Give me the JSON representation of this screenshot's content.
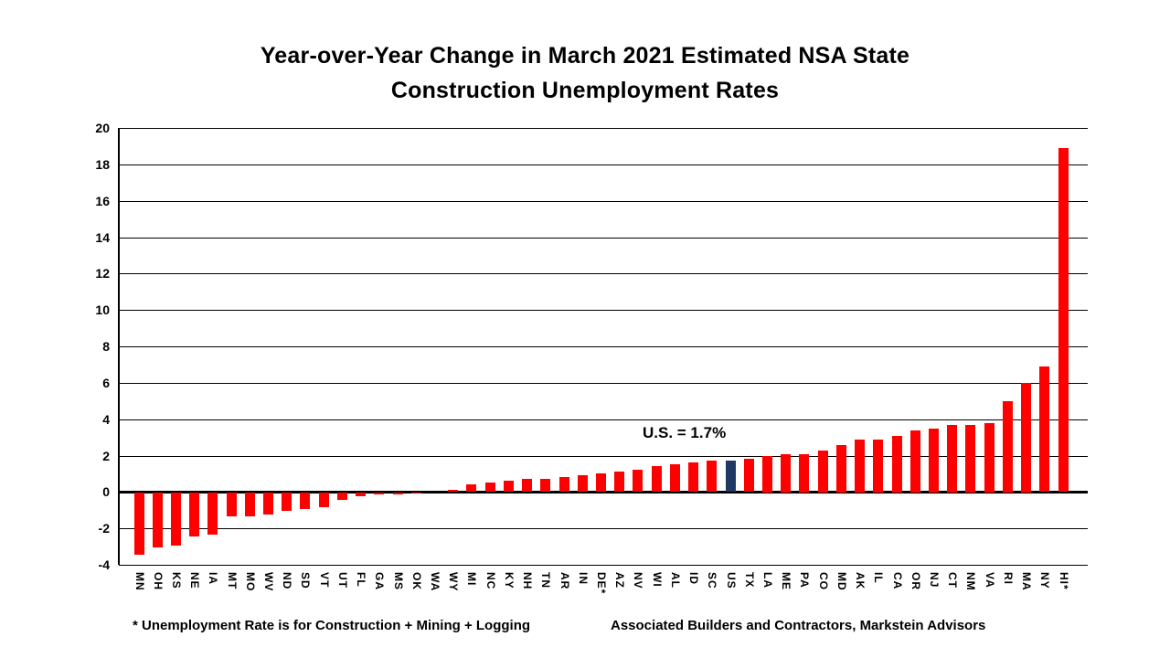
{
  "title": {
    "line1": "Year-over-Year Change in March 2021 Estimated NSA State",
    "line2": "Construction Unemployment Rates"
  },
  "footnotes": {
    "left": "* Unemployment Rate is for Construction + Mining + Logging",
    "right": "Associated Builders and Contractors, Markstein Advisors"
  },
  "chart_data": {
    "type": "bar",
    "title": "Year-over-Year Change in March 2021 Estimated NSA State Construction Unemployment Rates",
    "categories": [
      "MN",
      "OH",
      "KS",
      "NE",
      "IA",
      "MT",
      "MO",
      "WV",
      "ND",
      "SD",
      "VT",
      "UT",
      "FL",
      "GA",
      "MS",
      "OK",
      "WA",
      "WY",
      "MI",
      "NC",
      "KY",
      "NH",
      "TN",
      "AR",
      "IN",
      "DE*",
      "AZ",
      "NV",
      "WI",
      "AL",
      "ID",
      "SC",
      "US",
      "TX",
      "LA",
      "ME",
      "PA",
      "CO",
      "MD",
      "AK",
      "IL",
      "CA",
      "OR",
      "NJ",
      "CT",
      "NM",
      "VA",
      "RI",
      "MA",
      "NY",
      "HI*"
    ],
    "values": [
      -3.4,
      -3.0,
      -2.9,
      -2.4,
      -2.3,
      -1.3,
      -1.3,
      -1.2,
      -1.0,
      -0.9,
      -0.8,
      -0.4,
      -0.2,
      -0.1,
      -0.1,
      -0.05,
      0.0,
      0.1,
      0.4,
      0.5,
      0.6,
      0.7,
      0.7,
      0.8,
      0.9,
      1.0,
      1.1,
      1.2,
      1.4,
      1.5,
      1.6,
      1.7,
      1.7,
      1.8,
      2.0,
      2.1,
      2.1,
      2.3,
      2.6,
      2.9,
      2.9,
      3.1,
      3.4,
      3.5,
      3.7,
      3.7,
      3.8,
      5.0,
      6.0,
      6.9,
      18.9
    ],
    "xlabel": "",
    "ylabel": "",
    "ylim": [
      -4,
      20
    ],
    "ytick_step": 2,
    "yticks": [
      20,
      18,
      16,
      14,
      12,
      10,
      8,
      6,
      4,
      2,
      0,
      -2,
      -4
    ],
    "grid": true,
    "legend": "none",
    "bar_color": "#FF0000",
    "highlight": {
      "category": "US",
      "color": "#1F3864"
    },
    "annotation": {
      "text": "U.S. = 1.7%",
      "near_category": "US"
    }
  },
  "colors": {
    "background": "#FFFFFF",
    "text": "#000000",
    "gridline": "#000000",
    "bar_red": "#FF0000",
    "us_bar_navy": "#1F3864"
  }
}
